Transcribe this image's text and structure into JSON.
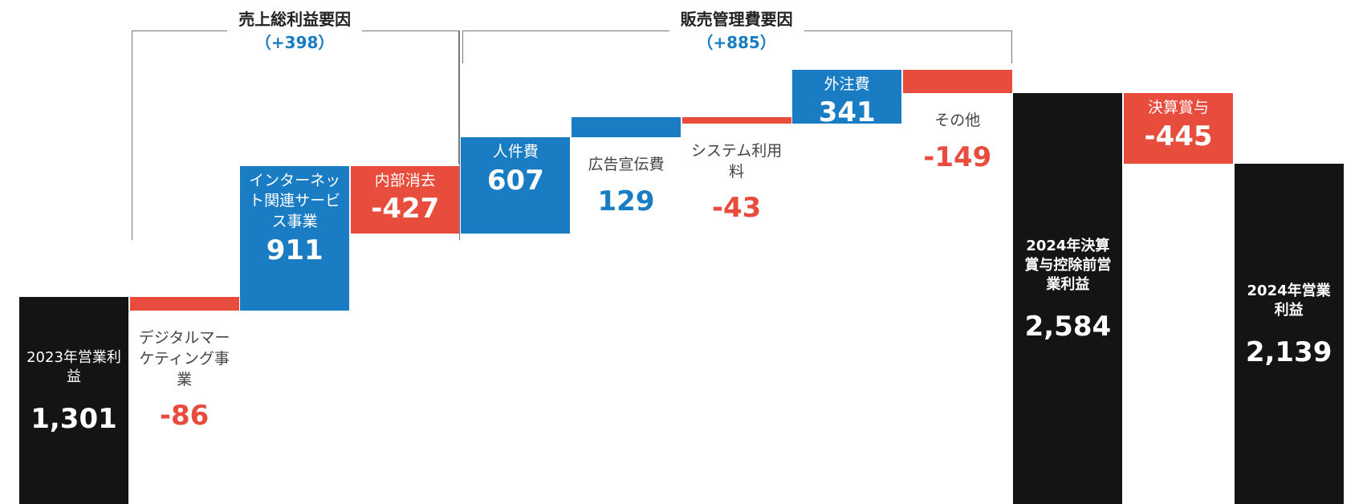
{
  "chart_data": {
    "type": "waterfall",
    "categories": [
      "2023年営業利益",
      "デジタルマーケティング事業",
      "インターネット関連サービス事業",
      "内部消去",
      "人件費",
      "広告宣伝費",
      "システム利用料",
      "外注費",
      "その他",
      "2024年決算賞与控除前営業利益",
      "決算賞与",
      "2024年営業利益"
    ],
    "values": [
      1301,
      -86,
      911,
      -427,
      607,
      129,
      -43,
      341,
      -149,
      2584,
      -445,
      2139
    ],
    "value_labels": [
      "1,301",
      "-86",
      "911",
      "-427",
      "607",
      "129",
      "-43",
      "341",
      "-149",
      "2,584",
      "-445",
      "2,139"
    ],
    "totals": [
      0,
      9,
      11
    ],
    "colors": {
      "increase": "#1a7dc4",
      "decrease": "#e84c3d",
      "total": "#141414"
    },
    "ylim": [
      0,
      3170
    ],
    "groups": [
      {
        "title": "売上総利益要因",
        "value": 398,
        "value_label": "（+398）"
      },
      {
        "title": "販売管理費要因",
        "value": 885,
        "value_label": "（+885）"
      }
    ]
  }
}
